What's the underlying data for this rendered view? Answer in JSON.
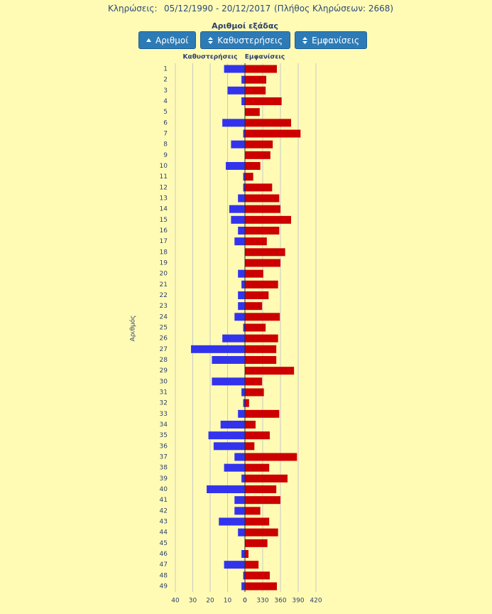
{
  "header": {
    "label": "Κληρώσεις:",
    "period": "05/12/1990 - 20/12/2017",
    "count": "(Πλήθος Κληρώσεων: 2668)"
  },
  "buttons": [
    "Αριθμοί",
    "Καθυστερήσεις",
    "Εμφανίσεις"
  ],
  "chart_data": {
    "type": "butterfly",
    "title": "Αριθμοί εξάδας",
    "y_label": "Αριθμός",
    "categories": [
      "1",
      "2",
      "3",
      "4",
      "5",
      "6",
      "7",
      "8",
      "9",
      "10",
      "11",
      "12",
      "13",
      "14",
      "15",
      "16",
      "17",
      "18",
      "19",
      "20",
      "21",
      "22",
      "23",
      "24",
      "25",
      "26",
      "27",
      "28",
      "29",
      "30",
      "31",
      "32",
      "33",
      "34",
      "35",
      "36",
      "37",
      "38",
      "39",
      "40",
      "41",
      "42",
      "43",
      "44",
      "45",
      "46",
      "47",
      "48",
      "49"
    ],
    "series": [
      {
        "name": "Καθυστερήσεις",
        "color": "#3333ee",
        "axis": "x",
        "values": [
          12,
          2,
          10,
          2,
          0,
          13,
          1,
          8,
          0,
          11,
          1,
          1,
          4,
          9,
          8,
          4,
          6,
          0,
          0,
          4,
          2,
          4,
          4,
          6,
          1,
          13,
          31,
          19,
          0,
          19,
          2,
          1,
          4,
          14,
          21,
          18,
          6,
          12,
          2,
          22,
          6,
          6,
          15,
          4,
          0,
          2,
          12,
          1,
          2
        ]
      },
      {
        "name": "Εμφανίσεις",
        "color": "#cc0000",
        "axis": "x2",
        "values": [
          354,
          336,
          335,
          362,
          325,
          378,
          394,
          347,
          343,
          326,
          314,
          346,
          358,
          360,
          378,
          358,
          337,
          368,
          360,
          331,
          356,
          340,
          329,
          359,
          335,
          356,
          353,
          353,
          383,
          329,
          332,
          307,
          358,
          318,
          342,
          316,
          388,
          341,
          372,
          353,
          360,
          326,
          341,
          356,
          338,
          306,
          323,
          342,
          354
        ]
      }
    ],
    "xlim": [
      0,
      40
    ],
    "xticks": [
      40,
      30,
      20,
      10,
      0
    ],
    "x2lim": [
      300,
      420
    ],
    "x2ticks": [
      {
        "value": 300,
        "label": "0"
      },
      330,
      360,
      390,
      420
    ],
    "grid": true
  }
}
